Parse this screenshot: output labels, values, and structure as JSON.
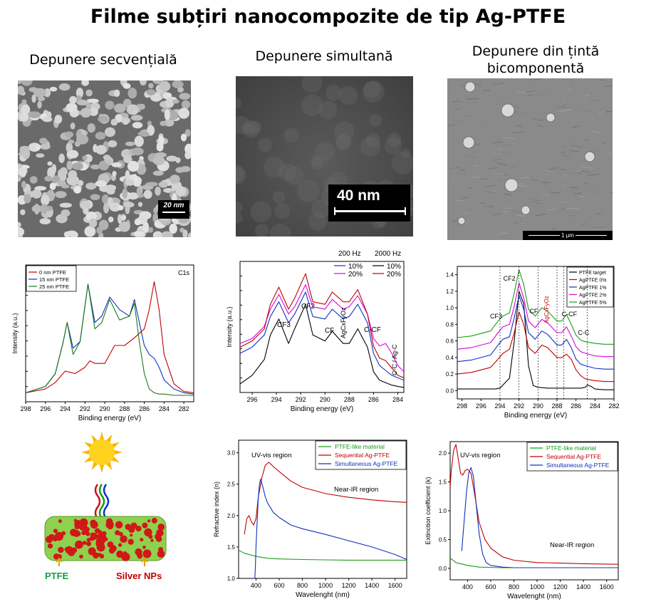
{
  "title": "Filme subțiri nanocompozite de tip Ag-PTFE",
  "columns": [
    {
      "heading": "Depunere secvențială"
    },
    {
      "heading": "Depunere simultană"
    },
    {
      "heading_line1": "Depunere din țintă",
      "heading_line2": "bicomponentă"
    }
  ],
  "sem": [
    {
      "scale_label": "20 nm"
    },
    {
      "scale_label": "40 nm"
    },
    {
      "scale_label": "1 μm"
    }
  ],
  "colors": {
    "green": "#1a7a1a",
    "red": "#c00000",
    "blue": "#1030c0",
    "magenta": "#e000e0",
    "black": "#000000"
  },
  "chart_data": [
    {
      "type": "line",
      "xlabel": "Binding energy (eV)",
      "ylabel": "Intensity (a.u.)",
      "xlim": [
        298,
        281
      ],
      "xticks": [
        298,
        296,
        294,
        292,
        290,
        288,
        286,
        284,
        282
      ],
      "annotation": "C1s",
      "series": [
        {
          "name": "0 nm PTFE",
          "color": "#c00000",
          "x": [
            298,
            296,
            295,
            294,
            293.5,
            293,
            292,
            291.5,
            291,
            290,
            289.5,
            289,
            288,
            287.5,
            287,
            286,
            285.5,
            285,
            284.5,
            284,
            283,
            282,
            281
          ],
          "y": [
            0.05,
            0.08,
            0.13,
            0.22,
            0.21,
            0.2,
            0.25,
            0.3,
            0.28,
            0.28,
            0.35,
            0.42,
            0.42,
            0.45,
            0.48,
            0.55,
            0.7,
            0.92,
            0.7,
            0.35,
            0.12,
            0.06,
            0.05
          ]
        },
        {
          "name": "15 nm PTFE",
          "color": "#1030c0",
          "x": [
            298,
            296,
            295,
            294.2,
            293.8,
            293.2,
            292.5,
            291.7,
            291,
            290.3,
            289.5,
            288.5,
            287.5,
            287,
            286.5,
            286,
            285.5,
            285,
            284.5,
            284,
            283,
            282,
            281
          ],
          "y": [
            0.05,
            0.1,
            0.2,
            0.45,
            0.6,
            0.4,
            0.45,
            0.9,
            0.6,
            0.65,
            0.8,
            0.7,
            0.65,
            0.78,
            0.6,
            0.42,
            0.35,
            0.32,
            0.25,
            0.15,
            0.08,
            0.05,
            0.04
          ]
        },
        {
          "name": "25 nm PTFE",
          "color": "#1a7a1a",
          "x": [
            298,
            296,
            295,
            294.2,
            293.8,
            293.2,
            292.5,
            291.7,
            291,
            290.3,
            289.5,
            288.5,
            287.5,
            287,
            286.5,
            286,
            285.5,
            285,
            284.5,
            284,
            283,
            282,
            281
          ],
          "y": [
            0.05,
            0.1,
            0.2,
            0.45,
            0.6,
            0.35,
            0.45,
            0.9,
            0.55,
            0.6,
            0.78,
            0.62,
            0.65,
            0.75,
            0.45,
            0.2,
            0.08,
            0.05,
            0.04,
            0.04,
            0.03,
            0.03,
            0.03
          ]
        }
      ]
    },
    {
      "type": "line",
      "xlabel": "Binding energy (eV)",
      "ylabel": "Intensity (a.u.)",
      "xlim": [
        297,
        283.5
      ],
      "xticks": [
        296,
        294,
        292,
        290,
        288,
        286,
        284
      ],
      "legend_headers": [
        "200 Hz",
        "2000 Hz"
      ],
      "annotations": [
        "CF3",
        "CF2",
        "CF",
        "AgCxFyOz",
        "C-CF",
        "C-C / Ag-C"
      ],
      "series": [
        {
          "name": "10%",
          "color": "#1030c0",
          "x": [
            297,
            296,
            295,
            294.5,
            293.8,
            293,
            292.5,
            291.6,
            291,
            290,
            289.4,
            288.5,
            288,
            287.3,
            286.5,
            286,
            285.5,
            285,
            284.5,
            284,
            283.5
          ],
          "y": [
            0.3,
            0.35,
            0.45,
            0.6,
            0.72,
            0.55,
            0.62,
            0.8,
            0.6,
            0.58,
            0.66,
            0.58,
            0.6,
            0.7,
            0.55,
            0.3,
            0.2,
            0.16,
            0.12,
            0.1,
            0.08
          ]
        },
        {
          "name": "20%",
          "color": "#e000e0",
          "x": [
            297,
            296,
            295,
            294.5,
            293.8,
            293,
            292.5,
            291.6,
            291,
            290,
            289.4,
            288.5,
            288,
            287.3,
            286.5,
            286,
            285.5,
            285,
            284.5,
            284,
            283.5
          ],
          "y": [
            0.38,
            0.42,
            0.52,
            0.66,
            0.78,
            0.62,
            0.68,
            0.86,
            0.68,
            0.66,
            0.74,
            0.66,
            0.68,
            0.77,
            0.62,
            0.42,
            0.36,
            0.38,
            0.3,
            0.2,
            0.15
          ]
        },
        {
          "name": "10%",
          "color": "#000000",
          "x": [
            297,
            296,
            295,
            294.5,
            293.8,
            293,
            292.5,
            291.6,
            291,
            290,
            289.4,
            288.5,
            288,
            287.3,
            286.5,
            286,
            285.5,
            285,
            284.5,
            284,
            283.5
          ],
          "y": [
            0.05,
            0.12,
            0.25,
            0.45,
            0.58,
            0.38,
            0.5,
            0.7,
            0.45,
            0.4,
            0.48,
            0.38,
            0.38,
            0.5,
            0.35,
            0.15,
            0.08,
            0.06,
            0.04,
            0.03,
            0.02
          ]
        },
        {
          "name": "20%",
          "color": "#c00000",
          "x": [
            297,
            296,
            295,
            294.5,
            293.8,
            293,
            292.5,
            291.6,
            291,
            290,
            289.4,
            288.5,
            288,
            287.3,
            286.5,
            286,
            285.5,
            285,
            284.5,
            284,
            283.5
          ],
          "y": [
            0.35,
            0.4,
            0.5,
            0.7,
            0.84,
            0.66,
            0.75,
            0.95,
            0.72,
            0.7,
            0.8,
            0.72,
            0.72,
            0.82,
            0.62,
            0.36,
            0.26,
            0.24,
            0.18,
            0.12,
            0.1
          ]
        }
      ]
    },
    {
      "type": "line",
      "xlabel": "Binding energy (eV)",
      "ylabel": "",
      "xlim": [
        298.5,
        282
      ],
      "ylim": [
        -0.1,
        1.5
      ],
      "xticks": [
        298,
        296,
        294,
        292,
        290,
        288,
        286,
        284,
        282
      ],
      "yticks": [
        "0.0",
        "0.2",
        "0.4",
        "0.6",
        "0.8",
        "1.0",
        "1.2",
        "1.4"
      ],
      "yticks_values": [
        0,
        0.2,
        0.4,
        0.6,
        0.8,
        1.0,
        1.2,
        1.4
      ],
      "annotations": [
        "CF3",
        "CF2",
        "CF",
        "AgCxFyOz",
        "C-CF",
        "C-C"
      ],
      "series": [
        {
          "name": "PTFE target",
          "color": "#000000",
          "x": [
            298.5,
            296,
            294.5,
            294,
            293,
            292.5,
            292,
            291.5,
            291,
            290.5,
            290,
            289,
            288,
            287,
            286,
            285.5,
            285,
            284.8,
            284.4,
            284,
            283,
            282
          ],
          "y": [
            0.02,
            0.02,
            0.02,
            0.03,
            0.15,
            0.6,
            1.2,
            1.05,
            0.3,
            0.06,
            0.04,
            0.03,
            0.03,
            0.03,
            0.03,
            0.03,
            0.04,
            0.07,
            0.05,
            0.02,
            0.01,
            0.01
          ]
        },
        {
          "name": "AgPTFE 0%",
          "color": "#c00000",
          "x": [
            298.5,
            297,
            295,
            294.2,
            293.7,
            293,
            292.5,
            292,
            291.5,
            291,
            290.3,
            289.6,
            289,
            288,
            287.5,
            287,
            286.5,
            286,
            285.5,
            285,
            284,
            283,
            282
          ],
          "y": [
            0.2,
            0.22,
            0.28,
            0.38,
            0.45,
            0.5,
            0.7,
            0.95,
            0.8,
            0.52,
            0.45,
            0.55,
            0.52,
            0.4,
            0.4,
            0.44,
            0.38,
            0.25,
            0.18,
            0.14,
            0.12,
            0.11,
            0.11
          ]
        },
        {
          "name": "AgPTFE 1%",
          "color": "#1030c0",
          "x": [
            298.5,
            297,
            295,
            294.2,
            293.7,
            293,
            292.5,
            292,
            291.5,
            291,
            290.3,
            289.6,
            289,
            288,
            287.5,
            287,
            286.5,
            286,
            285.5,
            285,
            284,
            283,
            282
          ],
          "y": [
            0.35,
            0.37,
            0.43,
            0.55,
            0.62,
            0.65,
            0.88,
            1.15,
            0.98,
            0.7,
            0.62,
            0.72,
            0.68,
            0.55,
            0.55,
            0.62,
            0.52,
            0.38,
            0.32,
            0.3,
            0.27,
            0.26,
            0.26
          ]
        },
        {
          "name": "AgPTFE 2%",
          "color": "#e000e0",
          "x": [
            298.5,
            297,
            295,
            294.2,
            293.7,
            293,
            292.5,
            292,
            291.5,
            291,
            290.3,
            289.6,
            289,
            288,
            287.5,
            287,
            286.5,
            286,
            285.5,
            285,
            284,
            283,
            282
          ],
          "y": [
            0.5,
            0.52,
            0.58,
            0.7,
            0.77,
            0.8,
            1.02,
            1.3,
            1.12,
            0.84,
            0.76,
            0.86,
            0.82,
            0.7,
            0.7,
            0.77,
            0.66,
            0.53,
            0.47,
            0.45,
            0.42,
            0.41,
            0.41
          ]
        },
        {
          "name": "AgPTFE 5%",
          "color": "#1a9a1a",
          "x": [
            298.5,
            297,
            295,
            294.2,
            293.7,
            293,
            292.5,
            292,
            291.5,
            291,
            290.3,
            289.6,
            289,
            288,
            287.5,
            287,
            286.5,
            286,
            285.5,
            285,
            284,
            283,
            282
          ],
          "y": [
            0.64,
            0.66,
            0.72,
            0.84,
            0.9,
            0.94,
            1.18,
            1.46,
            1.28,
            0.98,
            0.9,
            1.0,
            0.96,
            0.84,
            0.84,
            0.92,
            0.8,
            0.67,
            0.61,
            0.59,
            0.57,
            0.56,
            0.56
          ]
        }
      ]
    },
    {
      "type": "line",
      "xlabel": "Wavelenght (nm)",
      "ylabel": "Refractive index (n)",
      "xlim": [
        250,
        1700
      ],
      "ylim": [
        1.0,
        3.2
      ],
      "xticks": [
        400,
        600,
        800,
        1000,
        1200,
        1400,
        1600
      ],
      "yticks": [
        "1.0",
        "1.5",
        "2.0",
        "2.5",
        "3.0"
      ],
      "yticks_values": [
        1.0,
        1.5,
        2.0,
        2.5,
        3.0
      ],
      "annotations": [
        "UV-vis region",
        "Near-IR region"
      ],
      "series": [
        {
          "name": "PTFE-like material",
          "color": "#1a9a1a",
          "x": [
            250,
            300,
            400,
            500,
            600,
            800,
            1000,
            1200,
            1400,
            1600,
            1700
          ],
          "y": [
            1.45,
            1.4,
            1.35,
            1.32,
            1.31,
            1.3,
            1.295,
            1.29,
            1.29,
            1.29,
            1.29
          ]
        },
        {
          "name": "Sequential Ag-PTFE",
          "color": "#c00000",
          "x": [
            300,
            320,
            340,
            360,
            380,
            400,
            420,
            450,
            480,
            510,
            550,
            600,
            700,
            800,
            1000,
            1200,
            1400,
            1600,
            1700
          ],
          "y": [
            1.7,
            1.95,
            2.0,
            1.9,
            1.85,
            1.95,
            2.3,
            2.6,
            2.8,
            2.85,
            2.78,
            2.7,
            2.55,
            2.45,
            2.35,
            2.29,
            2.25,
            2.22,
            2.21
          ]
        },
        {
          "name": "Simultaneous Ag-PTFE",
          "color": "#1030c0",
          "x": [
            390,
            395,
            400,
            410,
            420,
            430,
            440,
            460,
            480,
            500,
            550,
            600,
            700,
            800,
            1000,
            1200,
            1400,
            1600,
            1700
          ],
          "y": [
            1.0,
            1.2,
            1.5,
            1.9,
            2.3,
            2.5,
            2.58,
            2.45,
            2.3,
            2.2,
            2.05,
            1.97,
            1.85,
            1.79,
            1.7,
            1.6,
            1.5,
            1.38,
            1.3
          ]
        }
      ]
    },
    {
      "type": "line",
      "xlabel": "Wavelenght (nm)",
      "ylabel": "Extinction coefficient (k)",
      "xlim": [
        250,
        1700
      ],
      "ylim": [
        -0.2,
        2.2
      ],
      "xticks": [
        400,
        600,
        800,
        1000,
        1200,
        1400,
        1600
      ],
      "yticks": [
        "0.0",
        "0.5",
        "1.0",
        "1.5",
        "2.0"
      ],
      "yticks_values": [
        0,
        0.5,
        1.0,
        1.5,
        2.0
      ],
      "annotations": [
        "UV-vis region",
        "Near-IR region"
      ],
      "series": [
        {
          "name": "PTFE-like material",
          "color": "#1a9a1a",
          "x": [
            250,
            300,
            400,
            500,
            700,
            1000,
            1300,
            1700
          ],
          "y": [
            0.18,
            0.1,
            0.05,
            0.02,
            0.01,
            0.01,
            0.01,
            0.01
          ]
        },
        {
          "name": "Sequential Ag-PTFE",
          "color": "#c00000",
          "x": [
            250,
            260,
            280,
            300,
            320,
            340,
            360,
            380,
            400,
            430,
            460,
            500,
            550,
            600,
            700,
            800,
            1000,
            1200,
            1400,
            1700
          ],
          "y": [
            1.4,
            1.7,
            2.05,
            2.15,
            1.9,
            1.65,
            1.62,
            1.7,
            1.72,
            1.65,
            1.3,
            0.8,
            0.5,
            0.35,
            0.2,
            0.14,
            0.1,
            0.09,
            0.08,
            0.07
          ]
        },
        {
          "name": "Simultaneous Ag-PTFE",
          "color": "#1030c0",
          "x": [
            350,
            370,
            390,
            410,
            430,
            450,
            470,
            500,
            530,
            560,
            600,
            700,
            800,
            1000,
            1200,
            1700
          ],
          "y": [
            0.3,
            0.8,
            1.3,
            1.65,
            1.75,
            1.6,
            1.2,
            0.6,
            0.25,
            0.1,
            0.05,
            0.02,
            0.01,
            0.01,
            0.01,
            0.01
          ]
        }
      ]
    }
  ],
  "diagram": {
    "label_ptfe": "PTFE",
    "label_silver": "Silver NPs"
  }
}
